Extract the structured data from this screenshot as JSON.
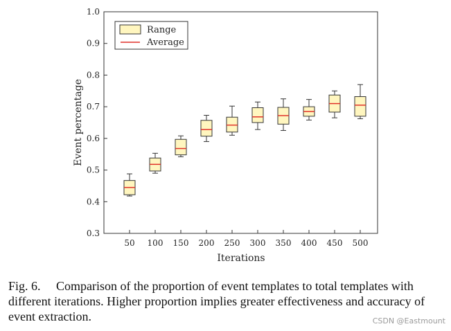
{
  "chart_data": {
    "type": "box",
    "categories": [
      "50",
      "100",
      "150",
      "200",
      "250",
      "300",
      "350",
      "400",
      "450",
      "500"
    ],
    "series": [
      {
        "box_bottom": [
          0.422,
          0.497,
          0.548,
          0.607,
          0.62,
          0.65,
          0.645,
          0.67,
          0.683,
          0.67
        ],
        "box_top": [
          0.467,
          0.538,
          0.597,
          0.657,
          0.667,
          0.697,
          0.698,
          0.7,
          0.737,
          0.732
        ],
        "whisker_low": [
          0.418,
          0.49,
          0.542,
          0.59,
          0.61,
          0.628,
          0.625,
          0.658,
          0.665,
          0.662
        ],
        "whisker_high": [
          0.488,
          0.553,
          0.608,
          0.673,
          0.702,
          0.715,
          0.725,
          0.723,
          0.75,
          0.77
        ],
        "average": [
          0.445,
          0.518,
          0.568,
          0.628,
          0.642,
          0.668,
          0.672,
          0.685,
          0.71,
          0.705
        ]
      }
    ],
    "xlabel": "Iterations",
    "ylabel": "Event percentage",
    "ylim": [
      0.3,
      1.0
    ],
    "yticks": [
      "0.3",
      "0.4",
      "0.5",
      "0.6",
      "0.7",
      "0.8",
      "0.9",
      "1.0"
    ],
    "legend": {
      "placement": "top-left",
      "range_label": "Range",
      "average_label": "Average"
    },
    "grid": false,
    "colors": {
      "box_fill": "#fff6bf",
      "box_stroke": "#333333",
      "average_line": "#e0302a",
      "axis": "#333333"
    }
  },
  "caption": "Fig. 6.  Comparison of the proportion of event templates to total templates with different iterations. Higher proportion implies greater effectiveness and accuracy of event extraction.",
  "watermark": "CSDN @Eastmount"
}
